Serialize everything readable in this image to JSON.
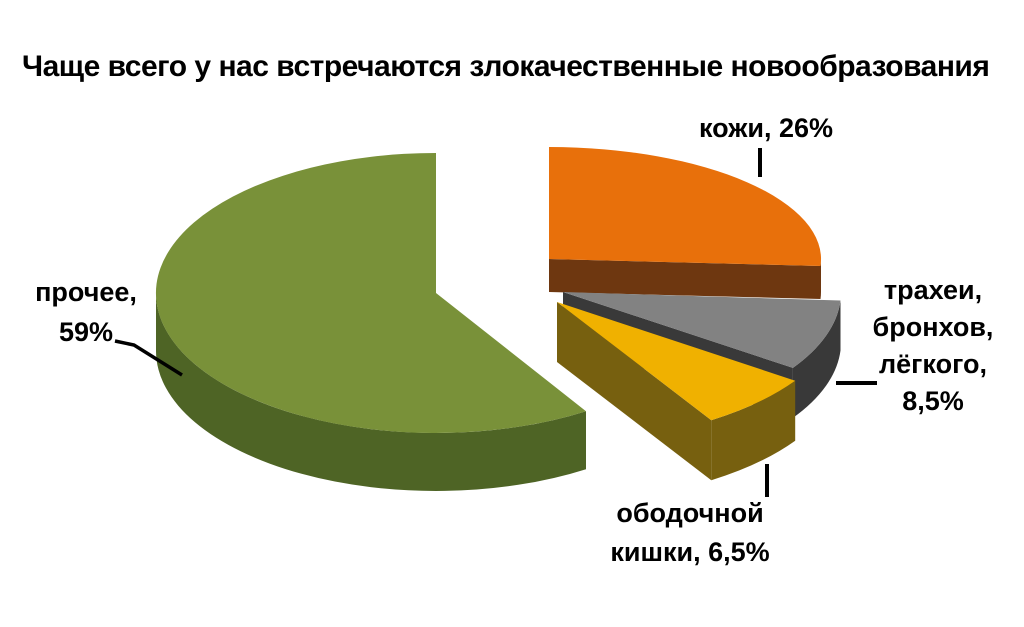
{
  "page": {
    "background": "#FFFFFF"
  },
  "chart_data": {
    "type": "pie",
    "style": "3d-exploded-pie",
    "title": "Чаще всего у нас встречаются злокачественные новообразования",
    "legend_position": "none",
    "grid": false,
    "value_suffix": "%",
    "slices": [
      {
        "label": "кожи",
        "value": 26,
        "value_display": "26%",
        "label_lines": [
          "кожи, 26%"
        ],
        "color": "#E8700B",
        "side_color": "#6E3710"
      },
      {
        "label": "трахеи, бронхов, лёгкого",
        "value": 8.5,
        "value_display": "8,5%",
        "label_lines": [
          "трахеи,",
          "бронхов,",
          "лёгкого,",
          "8,5%"
        ],
        "color": "#828282",
        "side_color": "#393939"
      },
      {
        "label": "ободочной кишки",
        "value": 6.5,
        "value_display": "6,5%",
        "label_lines": [
          "ободочной",
          "кишки, 6,5%"
        ],
        "color": "#F0B100",
        "side_color": "#77600F"
      },
      {
        "label": "прочее",
        "value": 59,
        "value_display": "59%",
        "label_lines": [
          "прочее,",
          "59%"
        ],
        "color": "#799139",
        "side_color": "#4E6425"
      }
    ]
  }
}
